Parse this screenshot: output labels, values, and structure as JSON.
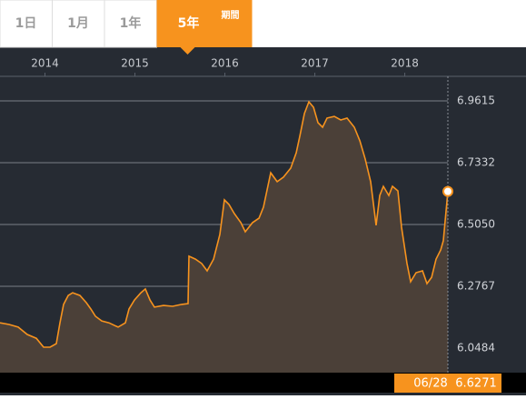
{
  "tabs": [
    {
      "label": "1日"
    },
    {
      "label": "1月"
    },
    {
      "label": "1年"
    },
    {
      "label": "5年",
      "active": true
    }
  ],
  "range_label": "期間",
  "chart_data": {
    "type": "area",
    "color": "#f7931e",
    "fill": "#4b4038",
    "grid": true,
    "last_date": "06/28",
    "x": [
      2013.5,
      2013.601,
      2013.702,
      2013.803,
      2013.904,
      2013.985,
      2014.056,
      2014.126,
      2014.167,
      2014.207,
      2014.258,
      2014.308,
      2014.389,
      2014.46,
      2014.51,
      2014.561,
      2014.631,
      2014.712,
      2014.813,
      2014.894,
      2014.934,
      2014.995,
      2015.066,
      2015.116,
      2015.167,
      2015.217,
      2015.318,
      2015.419,
      2015.52,
      2015.591,
      2015.601,
      2015.672,
      2015.742,
      2015.803,
      2015.874,
      2015.944,
      2015.995,
      2016.045,
      2016.106,
      2016.177,
      2016.227,
      2016.308,
      2016.379,
      2016.429,
      2016.51,
      2016.581,
      2016.651,
      2016.732,
      2016.793,
      2016.833,
      2016.884,
      2016.934,
      2016.985,
      2017.035,
      2017.086,
      2017.136,
      2017.217,
      2017.288,
      2017.358,
      2017.439,
      2017.5,
      2017.56,
      2017.621,
      2017.681,
      2017.722,
      2017.762,
      2017.823,
      2017.863,
      2017.924,
      2017.964,
      2018.025,
      2018.065,
      2018.126,
      2018.197,
      2018.247,
      2018.298,
      2018.348,
      2018.399,
      2018.429,
      2018.479
    ],
    "values": [
      6.142,
      6.136,
      6.126,
      6.099,
      6.085,
      6.052,
      6.052,
      6.065,
      6.142,
      6.21,
      6.243,
      6.253,
      6.243,
      6.216,
      6.193,
      6.166,
      6.149,
      6.142,
      6.126,
      6.142,
      6.193,
      6.226,
      6.253,
      6.267,
      6.226,
      6.2,
      6.206,
      6.203,
      6.21,
      6.213,
      6.388,
      6.377,
      6.361,
      6.334,
      6.377,
      6.468,
      6.596,
      6.579,
      6.545,
      6.512,
      6.478,
      6.512,
      6.528,
      6.569,
      6.696,
      6.663,
      6.68,
      6.713,
      6.77,
      6.831,
      6.915,
      6.958,
      6.938,
      6.881,
      6.864,
      6.898,
      6.904,
      6.891,
      6.898,
      6.864,
      6.814,
      6.747,
      6.663,
      6.502,
      6.612,
      6.646,
      6.612,
      6.646,
      6.629,
      6.495,
      6.361,
      6.294,
      6.327,
      6.334,
      6.287,
      6.31,
      6.377,
      6.411,
      6.445,
      6.6271
    ],
    "xlim": [
      2013.5,
      2018.479
    ],
    "xticks": [
      2014,
      2015,
      2016,
      2017,
      2018
    ],
    "ylim": [
      5.958,
      7.052
    ],
    "yticks": [
      6.0484,
      6.2767,
      {
        "value": 6.505,
        "label": "6.5050"
      },
      6.7332,
      6.9615
    ]
  }
}
